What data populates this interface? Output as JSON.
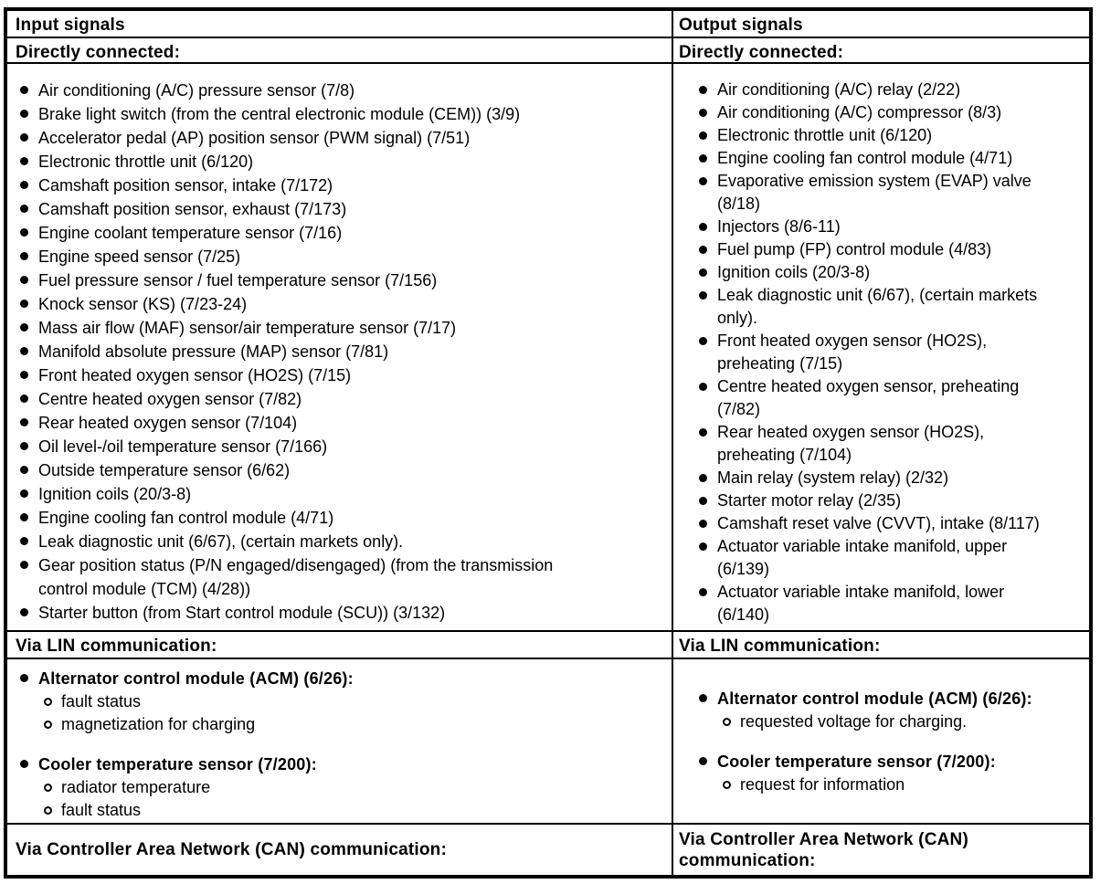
{
  "colors": {
    "text": "#000000",
    "background": "#ffffff",
    "border": "#000000"
  },
  "columns": [
    {
      "header": "Input signals",
      "directly_connected": {
        "label": "Directly connected:",
        "items": [
          "Air conditioning (A/C) pressure sensor (7/8)",
          "Brake light switch (from the central electronic module (CEM)) (3/9)",
          "Accelerator pedal (AP) position sensor (PWM signal) (7/51)",
          "Electronic throttle unit (6/120)",
          "Camshaft position sensor, intake (7/172)",
          "Camshaft position sensor, exhaust (7/173)",
          "Engine coolant temperature sensor (7/16)",
          "Engine speed sensor (7/25)",
          "Fuel pressure sensor / fuel temperature sensor (7/156)",
          "Knock sensor (KS) (7/23-24)",
          "Mass air flow (MAF) sensor/air temperature sensor (7/17)",
          "Manifold absolute pressure (MAP) sensor (7/81)",
          "Front heated oxygen sensor (HO2S) (7/15)",
          "Centre heated oxygen sensor (7/82)",
          "Rear heated oxygen sensor (7/104)",
          "Oil level-/oil temperature sensor (7/166)",
          "Outside temperature sensor (6/62)",
          "Ignition coils (20/3-8)",
          "Engine cooling fan control module (4/71)",
          "Leak diagnostic unit (6/67), (certain markets only).",
          "Gear position status (P/N engaged/disengaged) (from the transmission\ncontrol module (TCM) (4/28))",
          "Starter button (from Start control module (SCU)) (3/132)"
        ]
      },
      "lin": {
        "label": "Via LIN communication:",
        "groups": [
          {
            "title": "Alternator control module (ACM) (6/26):",
            "subitems": [
              "fault status",
              "magnetization for charging"
            ]
          },
          {
            "title": "Cooler temperature sensor (7/200):",
            "subitems": [
              "radiator temperature",
              "fault status"
            ]
          }
        ]
      },
      "can": {
        "label": "Via Controller Area Network (CAN) communication:"
      }
    },
    {
      "header": "Output signals",
      "directly_connected": {
        "label": "Directly connected:",
        "items": [
          "Air conditioning (A/C) relay (2/22)",
          "Air conditioning (A/C) compressor (8/3)",
          "Electronic throttle unit (6/120)",
          "Engine cooling fan control module (4/71)",
          "Evaporative emission system (EVAP) valve\n(8/18)",
          "Injectors (8/6-11)",
          "Fuel pump (FP) control module (4/83)",
          "Ignition coils (20/3-8)",
          "Leak diagnostic unit (6/67), (certain markets\nonly).",
          "Front heated oxygen sensor (HO2S),\npreheating (7/15)",
          "Centre heated oxygen sensor, preheating\n(7/82)",
          "Rear heated oxygen sensor (HO2S),\npreheating (7/104)",
          "Main relay (system relay) (2/32)",
          "Starter motor relay (2/35)",
          "Camshaft reset valve (CVVT), intake (8/117)",
          "Actuator variable intake manifold, upper\n(6/139)",
          "Actuator variable intake manifold, lower\n(6/140)"
        ]
      },
      "lin": {
        "label": "Via LIN communication:",
        "groups": [
          {
            "title": "Alternator control module (ACM) (6/26):",
            "subitems": [
              "requested voltage for charging."
            ]
          },
          {
            "title": "Cooler temperature sensor (7/200):",
            "subitems": [
              "request for information"
            ]
          }
        ]
      },
      "can": {
        "label": "Via Controller Area Network (CAN)\ncommunication:"
      }
    }
  ]
}
